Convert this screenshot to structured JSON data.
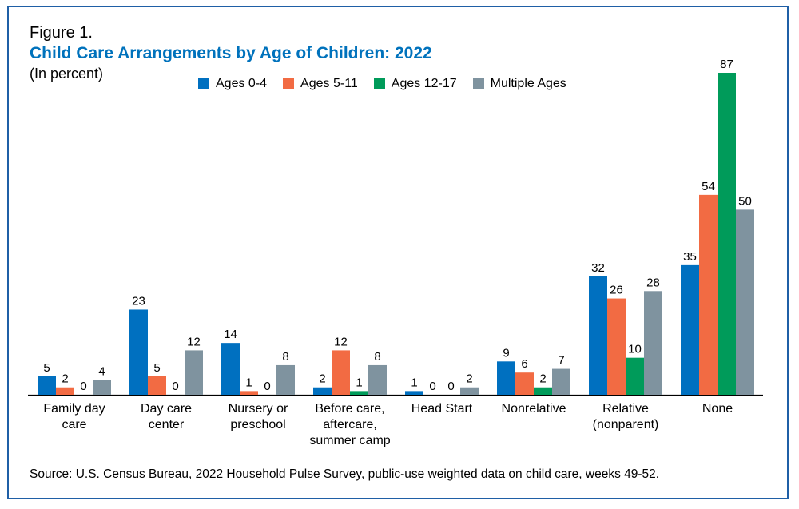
{
  "figure_label": "Figure 1.",
  "title": "Child Care Arrangements by Age of Children: 2022",
  "subtitle": "(In percent)",
  "source": "Source: U.S. Census Bureau, 2022 Household Pulse Survey, public-use weighted data on child care, weeks 49-52.",
  "chart_data": {
    "type": "bar",
    "title": "Child Care Arrangements by Age of Children: 2022",
    "subtitle": "(In percent)",
    "categories": [
      [
        "Family day",
        "care"
      ],
      [
        "Day care",
        "center"
      ],
      [
        "Nursery or",
        "preschool"
      ],
      [
        "Before care,",
        "aftercare,",
        "summer camp"
      ],
      [
        "Head Start"
      ],
      [
        "Nonrelative"
      ],
      [
        "Relative",
        "(nonparent)"
      ],
      [
        "None"
      ]
    ],
    "series": [
      {
        "name": "Ages 0-4",
        "color": "#0070c0",
        "values": [
          5,
          23,
          14,
          2,
          1,
          9,
          32,
          35
        ]
      },
      {
        "name": "Ages 5-11",
        "color": "#f26b43",
        "values": [
          2,
          5,
          1,
          12,
          0,
          6,
          26,
          54
        ]
      },
      {
        "name": "Ages 12-17",
        "color": "#009b5a",
        "values": [
          0,
          0,
          0,
          1,
          0,
          2,
          10,
          87
        ]
      },
      {
        "name": "Multiple Ages",
        "color": "#7f939f",
        "values": [
          4,
          12,
          8,
          8,
          2,
          7,
          28,
          50
        ]
      }
    ],
    "ylim": [
      0,
      87
    ],
    "legend_position": "top",
    "grid": false
  }
}
